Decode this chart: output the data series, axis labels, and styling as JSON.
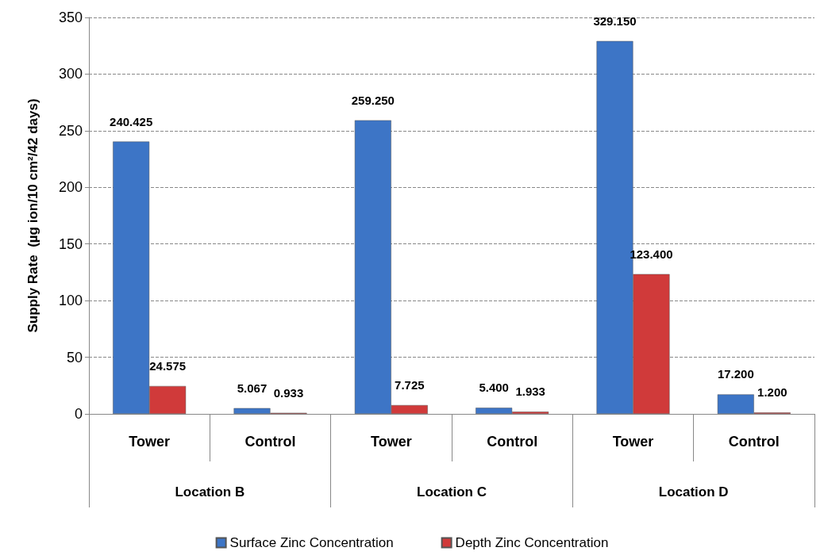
{
  "chart_data": {
    "type": "bar",
    "ylabel": "Supply Rate  (µg ion/10 cm²/42 days)",
    "categories": [
      "Tower",
      "Control",
      "Tower",
      "Control",
      "Tower",
      "Control"
    ],
    "annotations": [
      "Location B",
      "Location C",
      "Location D"
    ],
    "series": [
      {
        "name": "Surface Zinc Concentration",
        "color": "#3d75c6",
        "values": [
          240.425,
          5.067,
          259.25,
          5.4,
          329.15,
          17.2
        ],
        "value_labels": [
          "240.425",
          "5.067",
          "259.250",
          "5.400",
          "329.150",
          "17.200"
        ]
      },
      {
        "name": "Depth Zinc Concentration",
        "color": "#d03a3a",
        "values": [
          24.575,
          0.933,
          7.725,
          1.933,
          123.4,
          1.2
        ],
        "value_labels": [
          "24.575",
          "0.933",
          "7.725",
          "1.933",
          "123.400",
          "1.200"
        ]
      }
    ],
    "ylim": [
      0,
      350
    ],
    "yticks": [
      0,
      50,
      100,
      150,
      200,
      250,
      300,
      350
    ],
    "grid": "y",
    "legend": "bottom"
  }
}
